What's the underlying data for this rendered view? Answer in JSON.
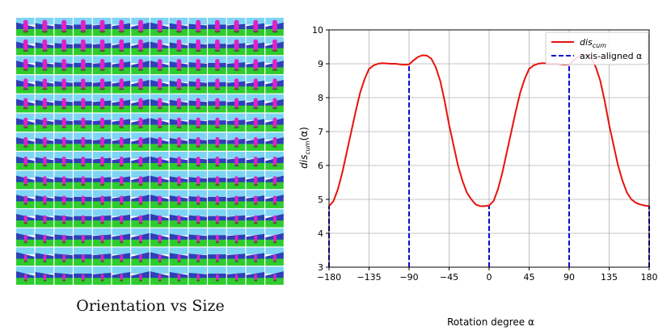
{
  "figure": {
    "caption": "Orientation vs Size",
    "image_grid": {
      "rows": 14,
      "cols": 14,
      "row_axis": "size",
      "col_axis": "orientation",
      "colors": {
        "sky": "#7fd4f4",
        "wall": "#2f3fb8",
        "floor": "#2ecc2e",
        "object": "#e022c8",
        "shadow": "#5a3a30"
      }
    }
  },
  "chart_data": {
    "type": "line",
    "title": "",
    "xlabel": "Rotation degree α",
    "ylabel": "dis_cum(α)",
    "ylabel_parts": {
      "main": "dis",
      "sub": "cum",
      "suffix": "(α)"
    },
    "xlim": [
      -180,
      180
    ],
    "ylim": [
      3,
      10
    ],
    "xticks": [
      -180,
      -135,
      -90,
      -45,
      0,
      45,
      90,
      135,
      180
    ],
    "xtick_labels": [
      "−180",
      "−135",
      "−90",
      "−45",
      "0",
      "45",
      "90",
      "135",
      "180"
    ],
    "yticks": [
      3,
      4,
      5,
      6,
      7,
      8,
      9,
      10
    ],
    "grid": true,
    "legend_location": "top-right",
    "series": [
      {
        "name": "dis_cum",
        "label_parts": {
          "main": "dis",
          "sub": "cum"
        },
        "style": "solid",
        "color": "#e8120c",
        "x": [
          -180,
          -175,
          -170,
          -165,
          -160,
          -155,
          -150,
          -145,
          -140,
          -135,
          -130,
          -125,
          -120,
          -115,
          -110,
          -105,
          -100,
          -95,
          -90,
          -85,
          -80,
          -75,
          -70,
          -65,
          -60,
          -55,
          -50,
          -45,
          -40,
          -35,
          -30,
          -25,
          -20,
          -15,
          -10,
          -5,
          0,
          5,
          10,
          15,
          20,
          25,
          30,
          35,
          40,
          45,
          50,
          55,
          60,
          65,
          70,
          75,
          80,
          85,
          90,
          95,
          100,
          105,
          110,
          115,
          120,
          125,
          130,
          135,
          140,
          145,
          150,
          155,
          160,
          165,
          170,
          175,
          180
        ],
        "values": [
          4.8,
          4.95,
          5.3,
          5.8,
          6.4,
          7.0,
          7.6,
          8.15,
          8.55,
          8.85,
          8.95,
          9.0,
          9.02,
          9.01,
          9.0,
          9.0,
          8.98,
          8.97,
          8.98,
          9.1,
          9.2,
          9.25,
          9.24,
          9.15,
          8.9,
          8.5,
          7.9,
          7.2,
          6.6,
          6.0,
          5.55,
          5.2,
          5.0,
          4.85,
          4.8,
          4.8,
          4.82,
          4.95,
          5.3,
          5.8,
          6.4,
          7.0,
          7.6,
          8.15,
          8.55,
          8.85,
          8.95,
          9.0,
          9.02,
          9.01,
          9.0,
          9.0,
          8.98,
          8.97,
          8.98,
          9.1,
          9.2,
          9.25,
          9.24,
          9.15,
          8.9,
          8.5,
          7.9,
          7.2,
          6.6,
          6.0,
          5.55,
          5.2,
          5.0,
          4.9,
          4.85,
          4.82,
          4.8
        ]
      },
      {
        "name": "axis-aligned α",
        "style": "dashed",
        "color": "#0a0ad8",
        "type": "vlines",
        "x": [
          -180,
          -90,
          0,
          90,
          180
        ],
        "y_to": [
          4.8,
          8.98,
          4.82,
          8.98,
          4.8
        ]
      }
    ]
  }
}
